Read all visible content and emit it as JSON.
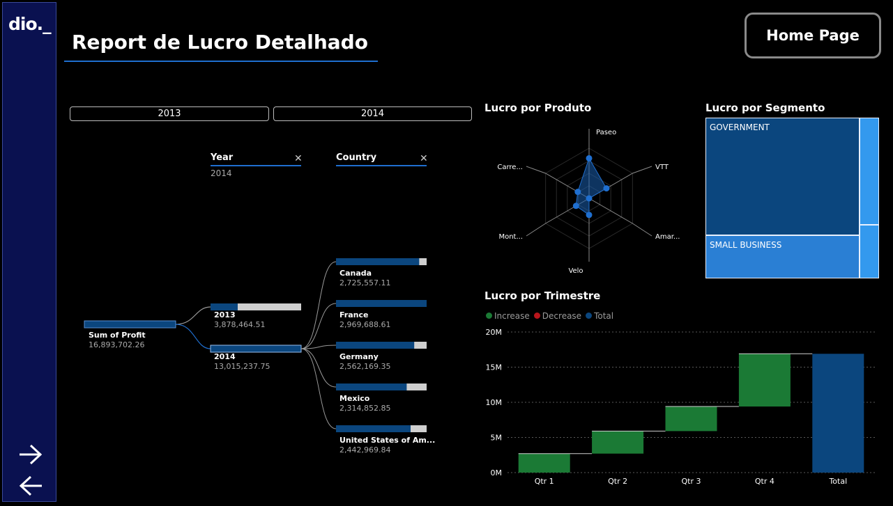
{
  "app": {
    "logo_text": "dio._",
    "title": "Report de Lucro Detalhado",
    "home_button": "Home Page"
  },
  "nav": {
    "forward_icon": "arrow-right-icon",
    "back_icon": "arrow-left-icon"
  },
  "year_slicer": {
    "options": [
      "2013",
      "2014"
    ]
  },
  "decomposition": {
    "headers": {
      "year": "Year",
      "year_value": "2014",
      "country": "Country"
    },
    "root": {
      "label": "Sum of Profit",
      "value": "16,893,702.26"
    },
    "years": [
      {
        "label": "2013",
        "value": "3,878,464.51",
        "frac": 0.3
      },
      {
        "label": "2014",
        "value": "13,015,237.75",
        "frac": 1.0
      }
    ],
    "countries": [
      {
        "label": "Canada",
        "value": "2,725,557.11",
        "frac": 0.918
      },
      {
        "label": "France",
        "value": "2,969,688.61",
        "frac": 1.0
      },
      {
        "label": "Germany",
        "value": "2,562,169.35",
        "frac": 0.863
      },
      {
        "label": "Mexico",
        "value": "2,314,852.85",
        "frac": 0.78
      },
      {
        "label": "United States of Am...",
        "value": "2,442,969.84",
        "frac": 0.823
      }
    ]
  },
  "radar": {
    "title": "Lucro por Produto",
    "axes": [
      "Paseo",
      "VTT",
      "Amar...",
      "Velo",
      "Mont...",
      "Carre..."
    ],
    "values": [
      0.8,
      0.4,
      0.0,
      0.33,
      0.3,
      0.26
    ]
  },
  "treemap": {
    "title": "Lucro por Segmento",
    "segments": [
      {
        "label": "GOVERNMENT",
        "color": "#0b467e"
      },
      {
        "label": "SMALL BUSINESS",
        "color": "#2a7fd4"
      }
    ],
    "accent_color": "#3399ee"
  },
  "chart_data": {
    "type": "waterfall",
    "title": "Lucro por Trimestre",
    "legend": [
      {
        "name": "Increase",
        "color": "#1b7a35"
      },
      {
        "name": "Decrease",
        "color": "#b8151b"
      },
      {
        "name": "Total",
        "color": "#0b467e"
      }
    ],
    "categories": [
      "Qtr 1",
      "Qtr 2",
      "Qtr 3",
      "Qtr 4",
      "Total"
    ],
    "values": [
      2.7,
      3.2,
      3.5,
      7.5,
      16.9
    ],
    "unit": "M",
    "ylim": [
      0,
      20
    ],
    "yticks": [
      "0M",
      "5M",
      "10M",
      "15M",
      "20M"
    ]
  }
}
